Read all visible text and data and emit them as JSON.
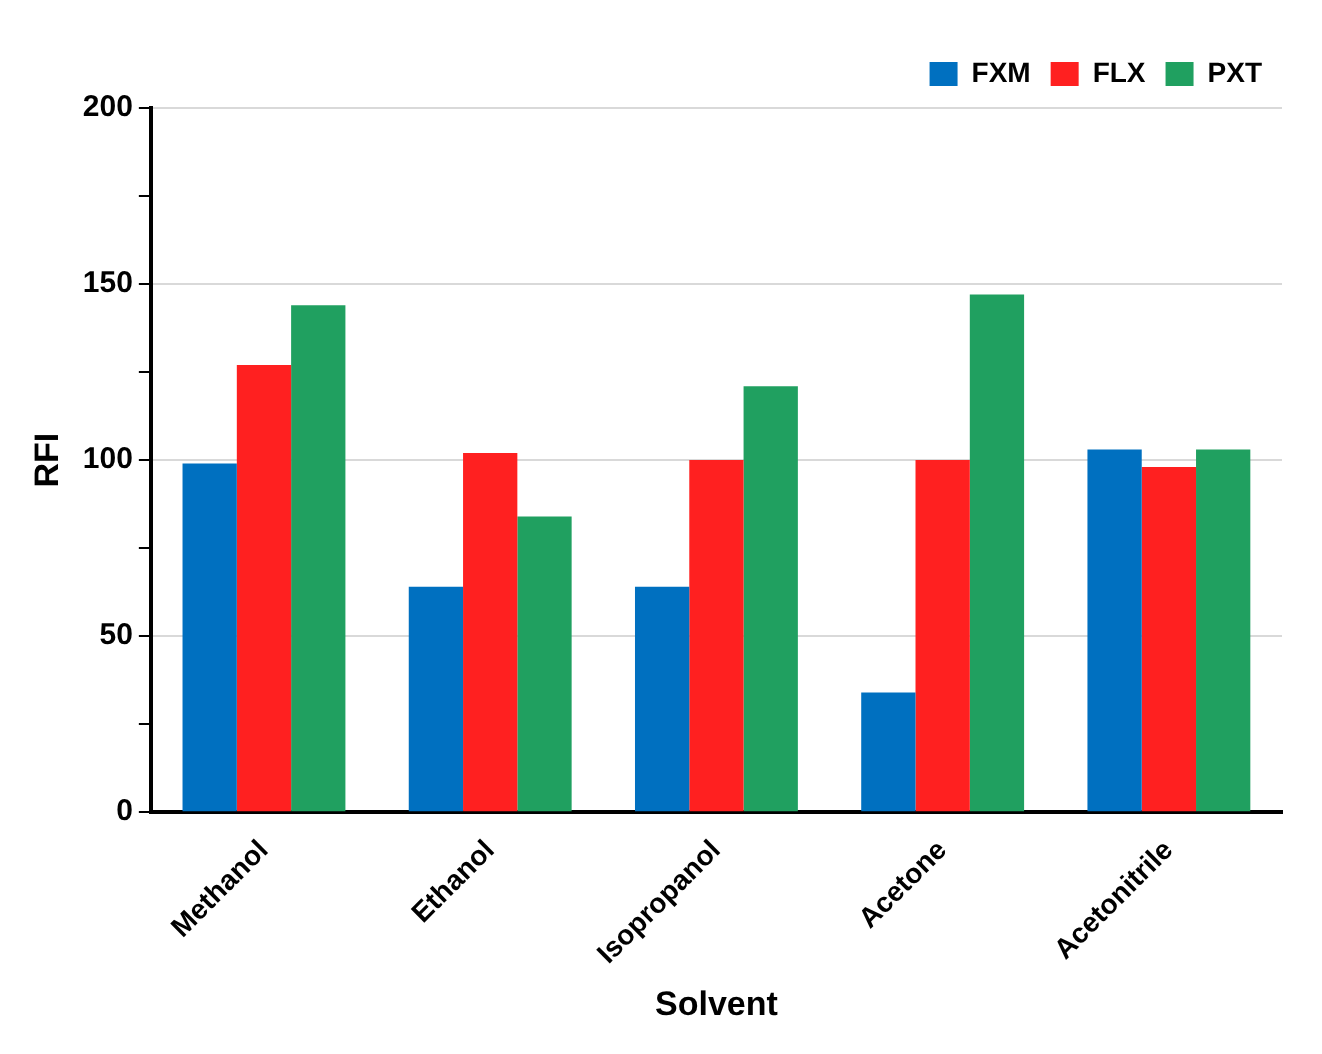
{
  "chart_data": {
    "type": "bar",
    "xlabel": "Solvent",
    "ylabel": "RFI",
    "categories": [
      "Methanol",
      "Ethanol",
      "Isopropanol",
      "Acetone",
      "Acetonitrile"
    ],
    "series": [
      {
        "name": "FXM",
        "color": "#0070c0",
        "values": [
          99,
          64,
          64,
          34,
          103
        ]
      },
      {
        "name": "FLX",
        "color": "#ff2020",
        "values": [
          127,
          102,
          100,
          100,
          98
        ]
      },
      {
        "name": "PXT",
        "color": "#20a060",
        "values": [
          144,
          84,
          121,
          147,
          103
        ]
      }
    ],
    "ylim": [
      0,
      200
    ],
    "yticks": [
      0,
      {
        "value": 25,
        "label": null
      },
      50,
      {
        "value": 75,
        "label": null
      },
      100,
      {
        "value": 125,
        "label": null
      },
      150,
      {
        "value": 175,
        "label": null
      },
      200
    ],
    "grid": "y",
    "legend": "top right"
  }
}
